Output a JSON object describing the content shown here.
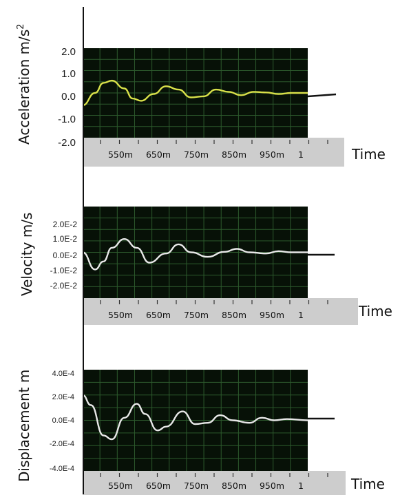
{
  "chart_data": [
    {
      "type": "line",
      "ylabel": "Acceleration  m/s",
      "ylabel_sup": "2",
      "xlabel": "Time",
      "yticks": [
        "2.0",
        "1.0",
        "0.0",
        "-1.0",
        "-2.0"
      ],
      "xticks": [
        "550m",
        "650m",
        "750m",
        "850m",
        "950m",
        "1"
      ],
      "ylim": [
        -2.0,
        2.0
      ],
      "xlim": [
        0.46,
        1.0
      ],
      "grid": true,
      "background": "#071107",
      "series": [
        {
          "color": "#d9e14a",
          "x": [
            0.46,
            0.49,
            0.51,
            0.53,
            0.56,
            0.58,
            0.6,
            0.63,
            0.66,
            0.69,
            0.72,
            0.75,
            0.78,
            0.81,
            0.84,
            0.87,
            0.9,
            0.93,
            0.96,
            1.0
          ],
          "y": [
            -0.55,
            0.0,
            0.45,
            0.55,
            0.2,
            -0.25,
            -0.35,
            -0.05,
            0.3,
            0.15,
            -0.2,
            -0.15,
            0.15,
            0.05,
            -0.1,
            0.05,
            0.02,
            -0.05,
            0.0,
            0.0
          ]
        }
      ]
    },
    {
      "type": "line",
      "ylabel": "Velocity  m/s",
      "xlabel": "Time",
      "yticks": [
        "2.0E-2",
        "1.0E-2",
        "0.0E-2",
        "-1.0E-2",
        "-2.0E-2"
      ],
      "xticks": [
        "550m",
        "650m",
        "750m",
        "850m",
        "950m",
        "1"
      ],
      "ylim": [
        -0.02,
        0.02
      ],
      "xlim": [
        0.46,
        1.0
      ],
      "grid": true,
      "background": "#071107",
      "series": [
        {
          "color": "#e8e8e8",
          "x": [
            0.46,
            0.49,
            0.51,
            0.53,
            0.56,
            0.59,
            0.62,
            0.66,
            0.69,
            0.72,
            0.76,
            0.8,
            0.83,
            0.86,
            0.9,
            0.93,
            0.96,
            1.0
          ],
          "y": [
            0.0,
            -0.0075,
            -0.004,
            0.002,
            0.0058,
            0.002,
            -0.0045,
            -0.0005,
            0.0035,
            0.0,
            -0.002,
            0.0002,
            0.0015,
            0.0,
            -0.0005,
            0.0005,
            0.0,
            0.0
          ]
        }
      ]
    },
    {
      "type": "line",
      "ylabel": "Displacement  m",
      "xlabel": "Time",
      "yticks": [
        "4.0E-4",
        "2.0E-4",
        "0.0E-4",
        "-2.0E-4",
        "-4.0E-4"
      ],
      "xticks": [
        "550m",
        "650m",
        "750m",
        "850m",
        "950m",
        "1"
      ],
      "ylim": [
        -0.0004,
        0.0004
      ],
      "xlim": [
        0.46,
        1.0
      ],
      "grid": true,
      "background": "#071107",
      "series": [
        {
          "color": "#e8e8e8",
          "x": [
            0.46,
            0.48,
            0.51,
            0.53,
            0.56,
            0.59,
            0.61,
            0.64,
            0.66,
            0.7,
            0.73,
            0.76,
            0.79,
            0.82,
            0.86,
            0.89,
            0.92,
            0.95,
            1.0
          ],
          "y": [
            0.0002,
            0.00012,
            -0.00012,
            -0.00015,
            2e-05,
            0.00013,
            5e-05,
            -8e-05,
            -5e-05,
            7e-05,
            -3e-05,
            -2e-05,
            4e-05,
            0.0,
            -2e-05,
            2e-05,
            0.0,
            1e-05,
            0.0
          ]
        }
      ]
    }
  ]
}
